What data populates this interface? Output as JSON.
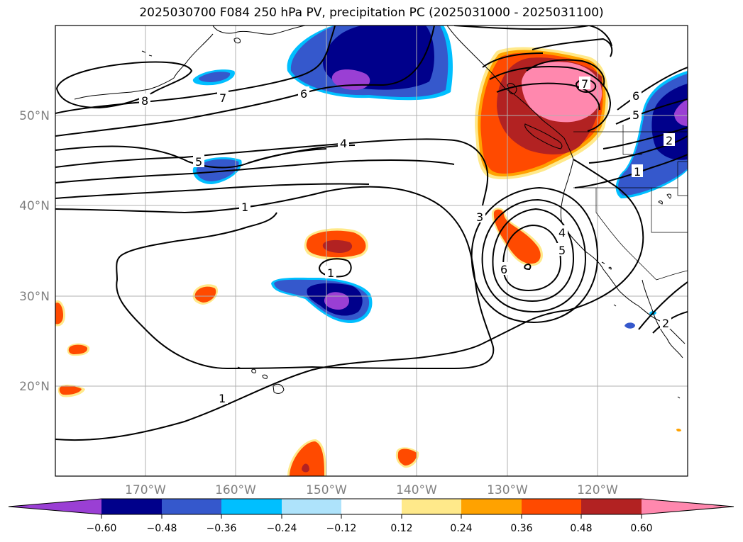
{
  "title": "2025030700 F084 250 hPa PV, precipitation PC (2025031000 - 2025031100)",
  "lon_labels": [
    "170°W",
    "160°W",
    "150°W",
    "140°W",
    "130°W",
    "120°W"
  ],
  "lat_labels": [
    "50°N",
    "40°N",
    "30°N",
    "20°N"
  ],
  "colorbar": {
    "ticks": [
      "−0.60",
      "−0.48",
      "−0.36",
      "−0.24",
      "−0.12",
      "0.12",
      "0.24",
      "0.36",
      "0.48",
      "0.60"
    ],
    "colors": [
      "#9a3fd4",
      "#00008b",
      "#3558cc",
      "#00bfff",
      "#aee3fb",
      "#ffffff",
      "#ffe98a",
      "#ffa200",
      "#ff4a00",
      "#b22222",
      "#ff88ae"
    ]
  },
  "contour_labels": [
    "8",
    "7",
    "6",
    "5",
    "4",
    "1",
    "3",
    "4",
    "5",
    "6",
    "1",
    "1",
    "7",
    "6",
    "5",
    "2",
    "1",
    "2"
  ],
  "colors": {
    "contour": "#000000",
    "coast": "#000000",
    "grid": "#b0b0b0"
  }
}
